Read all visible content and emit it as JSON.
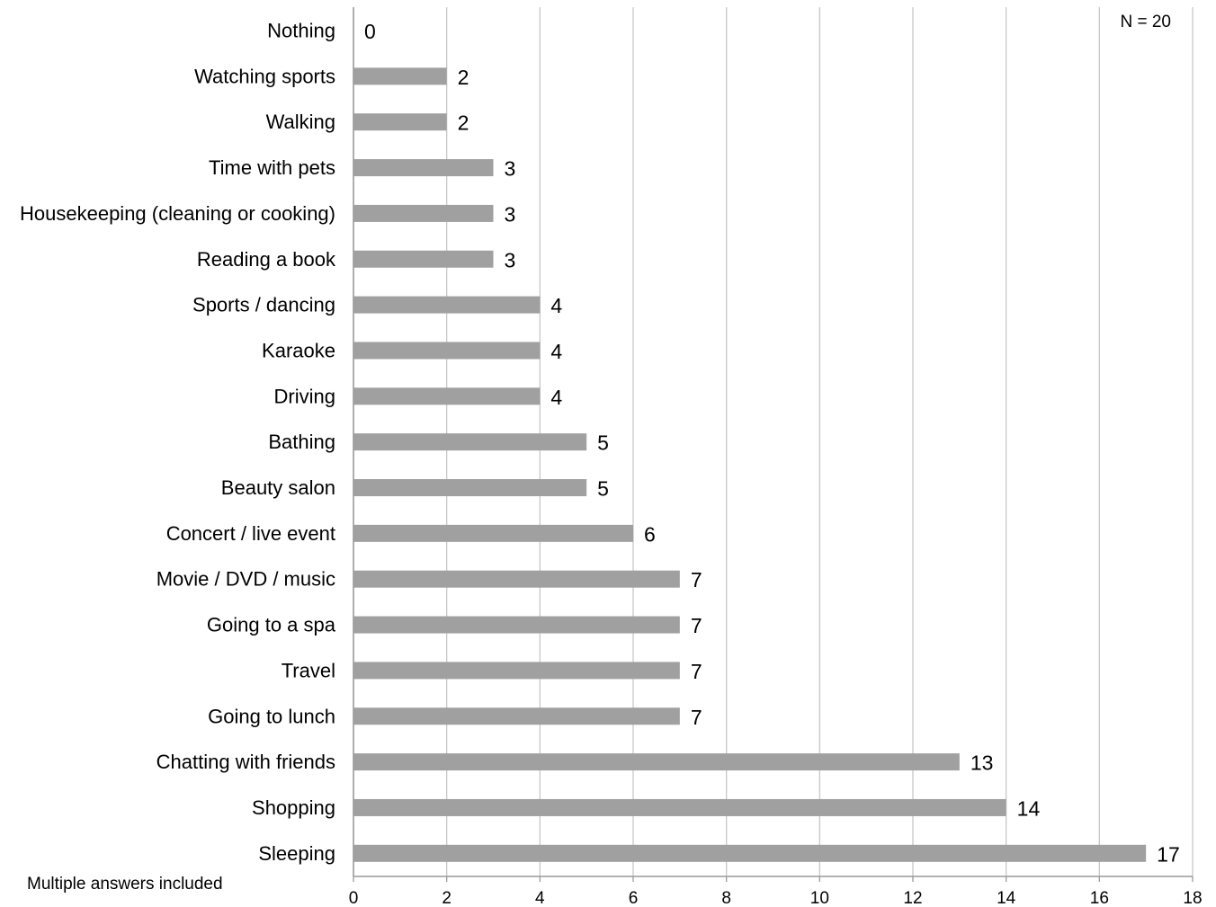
{
  "chart_data": {
    "type": "bar",
    "orientation": "horizontal",
    "categories": [
      "Nothing",
      "Watching sports",
      "Walking",
      "Time with pets",
      "Housekeeping (cleaning or cooking)",
      "Reading a book",
      "Sports / dancing",
      "Karaoke",
      "Driving",
      "Bathing",
      "Beauty salon",
      "Concert / live event",
      "Movie / DVD / music",
      "Going to a spa",
      "Travel",
      "Going to lunch",
      "Chatting with friends",
      "Shopping",
      "Sleeping"
    ],
    "values": [
      0,
      2,
      2,
      3,
      3,
      3,
      4,
      4,
      4,
      5,
      5,
      6,
      7,
      7,
      7,
      7,
      13,
      14,
      17
    ],
    "title": "",
    "xlabel": "",
    "ylabel": "",
    "xlim": [
      0,
      18
    ],
    "xticks": [
      "0",
      "2",
      "4",
      "6",
      "8",
      "10",
      "12",
      "14",
      "16",
      "18"
    ],
    "grid": "vertical",
    "data_labels": true,
    "annotations": {
      "sample_size": "N = 20",
      "footnote": "Multiple answers included"
    },
    "colors": {
      "bar": "#a0a0a0",
      "grid": "#c8c8c8",
      "axis": "#9a9a9a",
      "text": "#000000"
    }
  }
}
